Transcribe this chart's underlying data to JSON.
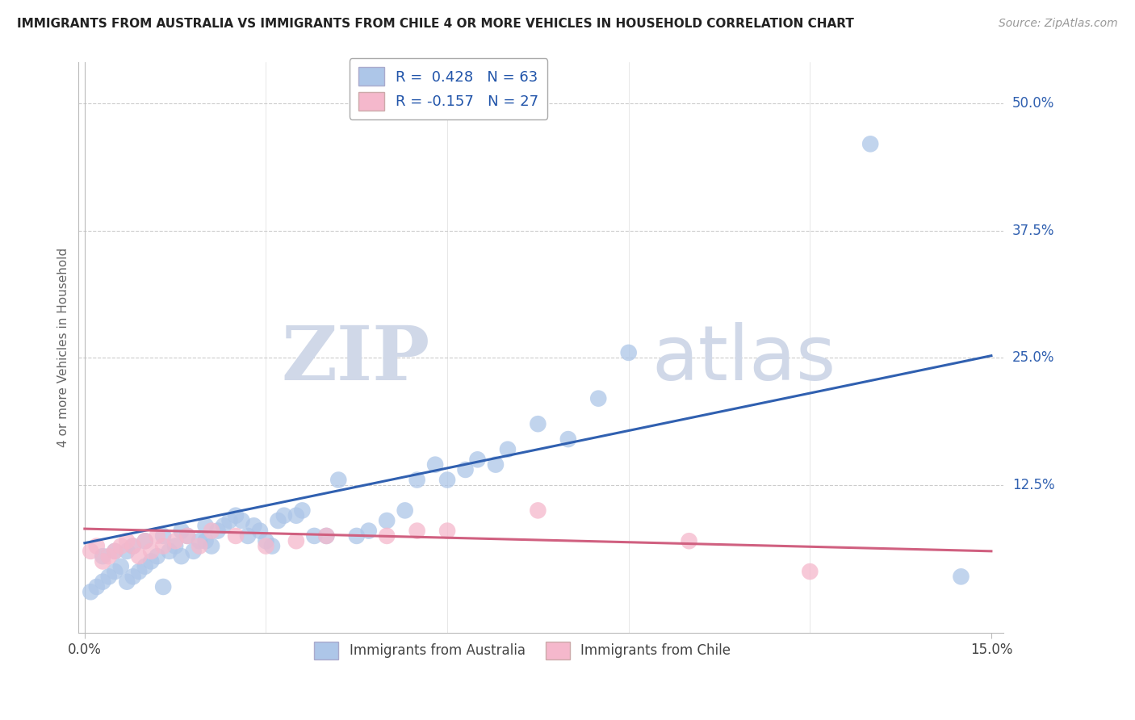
{
  "title": "IMMIGRANTS FROM AUSTRALIA VS IMMIGRANTS FROM CHILE 4 OR MORE VEHICLES IN HOUSEHOLD CORRELATION CHART",
  "source": "Source: ZipAtlas.com",
  "ylabel": "4 or more Vehicles in Household",
  "ytick_vals": [
    0.5,
    0.375,
    0.25,
    0.125
  ],
  "ytick_labels": [
    "50.0%",
    "37.5%",
    "25.0%",
    "12.5%"
  ],
  "xlim": [
    0.0,
    0.15
  ],
  "ylim": [
    0.0,
    0.54
  ],
  "legend1_label": "R =  0.428   N = 63",
  "legend2_label": "R = -0.157   N = 27",
  "aus_color": "#adc6e8",
  "aus_line_color": "#3060b0",
  "chile_color": "#f5b8cc",
  "chile_line_color": "#d06080",
  "aus_trendline_x": [
    0.0,
    0.15
  ],
  "aus_trendline_y": [
    0.068,
    0.252
  ],
  "chile_trendline_x": [
    0.0,
    0.15
  ],
  "chile_trendline_y": [
    0.082,
    0.06
  ],
  "watermark_zip": "ZIP",
  "watermark_atlas": "atlas",
  "bottom_legend_aus": "Immigrants from Australia",
  "bottom_legend_chile": "Immigrants from Chile",
  "aus_x": [
    0.001,
    0.002,
    0.003,
    0.003,
    0.004,
    0.005,
    0.005,
    0.006,
    0.007,
    0.007,
    0.008,
    0.008,
    0.009,
    0.01,
    0.01,
    0.011,
    0.012,
    0.013,
    0.013,
    0.014,
    0.015,
    0.016,
    0.016,
    0.017,
    0.018,
    0.019,
    0.02,
    0.02,
    0.021,
    0.022,
    0.023,
    0.024,
    0.025,
    0.026,
    0.027,
    0.028,
    0.029,
    0.03,
    0.031,
    0.032,
    0.033,
    0.035,
    0.036,
    0.038,
    0.04,
    0.042,
    0.045,
    0.047,
    0.05,
    0.053,
    0.055,
    0.058,
    0.06,
    0.063,
    0.065,
    0.068,
    0.07,
    0.075,
    0.08,
    0.085,
    0.09,
    0.13,
    0.145
  ],
  "aus_y": [
    0.02,
    0.025,
    0.03,
    0.055,
    0.035,
    0.04,
    0.06,
    0.045,
    0.03,
    0.06,
    0.035,
    0.065,
    0.04,
    0.045,
    0.07,
    0.05,
    0.055,
    0.025,
    0.075,
    0.06,
    0.065,
    0.055,
    0.08,
    0.075,
    0.06,
    0.07,
    0.07,
    0.085,
    0.065,
    0.08,
    0.085,
    0.09,
    0.095,
    0.09,
    0.075,
    0.085,
    0.08,
    0.07,
    0.065,
    0.09,
    0.095,
    0.095,
    0.1,
    0.075,
    0.075,
    0.13,
    0.075,
    0.08,
    0.09,
    0.1,
    0.13,
    0.145,
    0.13,
    0.14,
    0.15,
    0.145,
    0.16,
    0.185,
    0.17,
    0.21,
    0.255,
    0.46,
    0.035
  ],
  "chile_x": [
    0.001,
    0.002,
    0.003,
    0.004,
    0.005,
    0.006,
    0.007,
    0.008,
    0.009,
    0.01,
    0.011,
    0.012,
    0.013,
    0.015,
    0.017,
    0.019,
    0.021,
    0.025,
    0.03,
    0.035,
    0.04,
    0.05,
    0.055,
    0.06,
    0.075,
    0.1,
    0.12
  ],
  "chile_y": [
    0.06,
    0.065,
    0.05,
    0.055,
    0.06,
    0.065,
    0.07,
    0.065,
    0.055,
    0.07,
    0.06,
    0.075,
    0.065,
    0.07,
    0.075,
    0.065,
    0.08,
    0.075,
    0.065,
    0.07,
    0.075,
    0.075,
    0.08,
    0.08,
    0.1,
    0.07,
    0.04
  ]
}
